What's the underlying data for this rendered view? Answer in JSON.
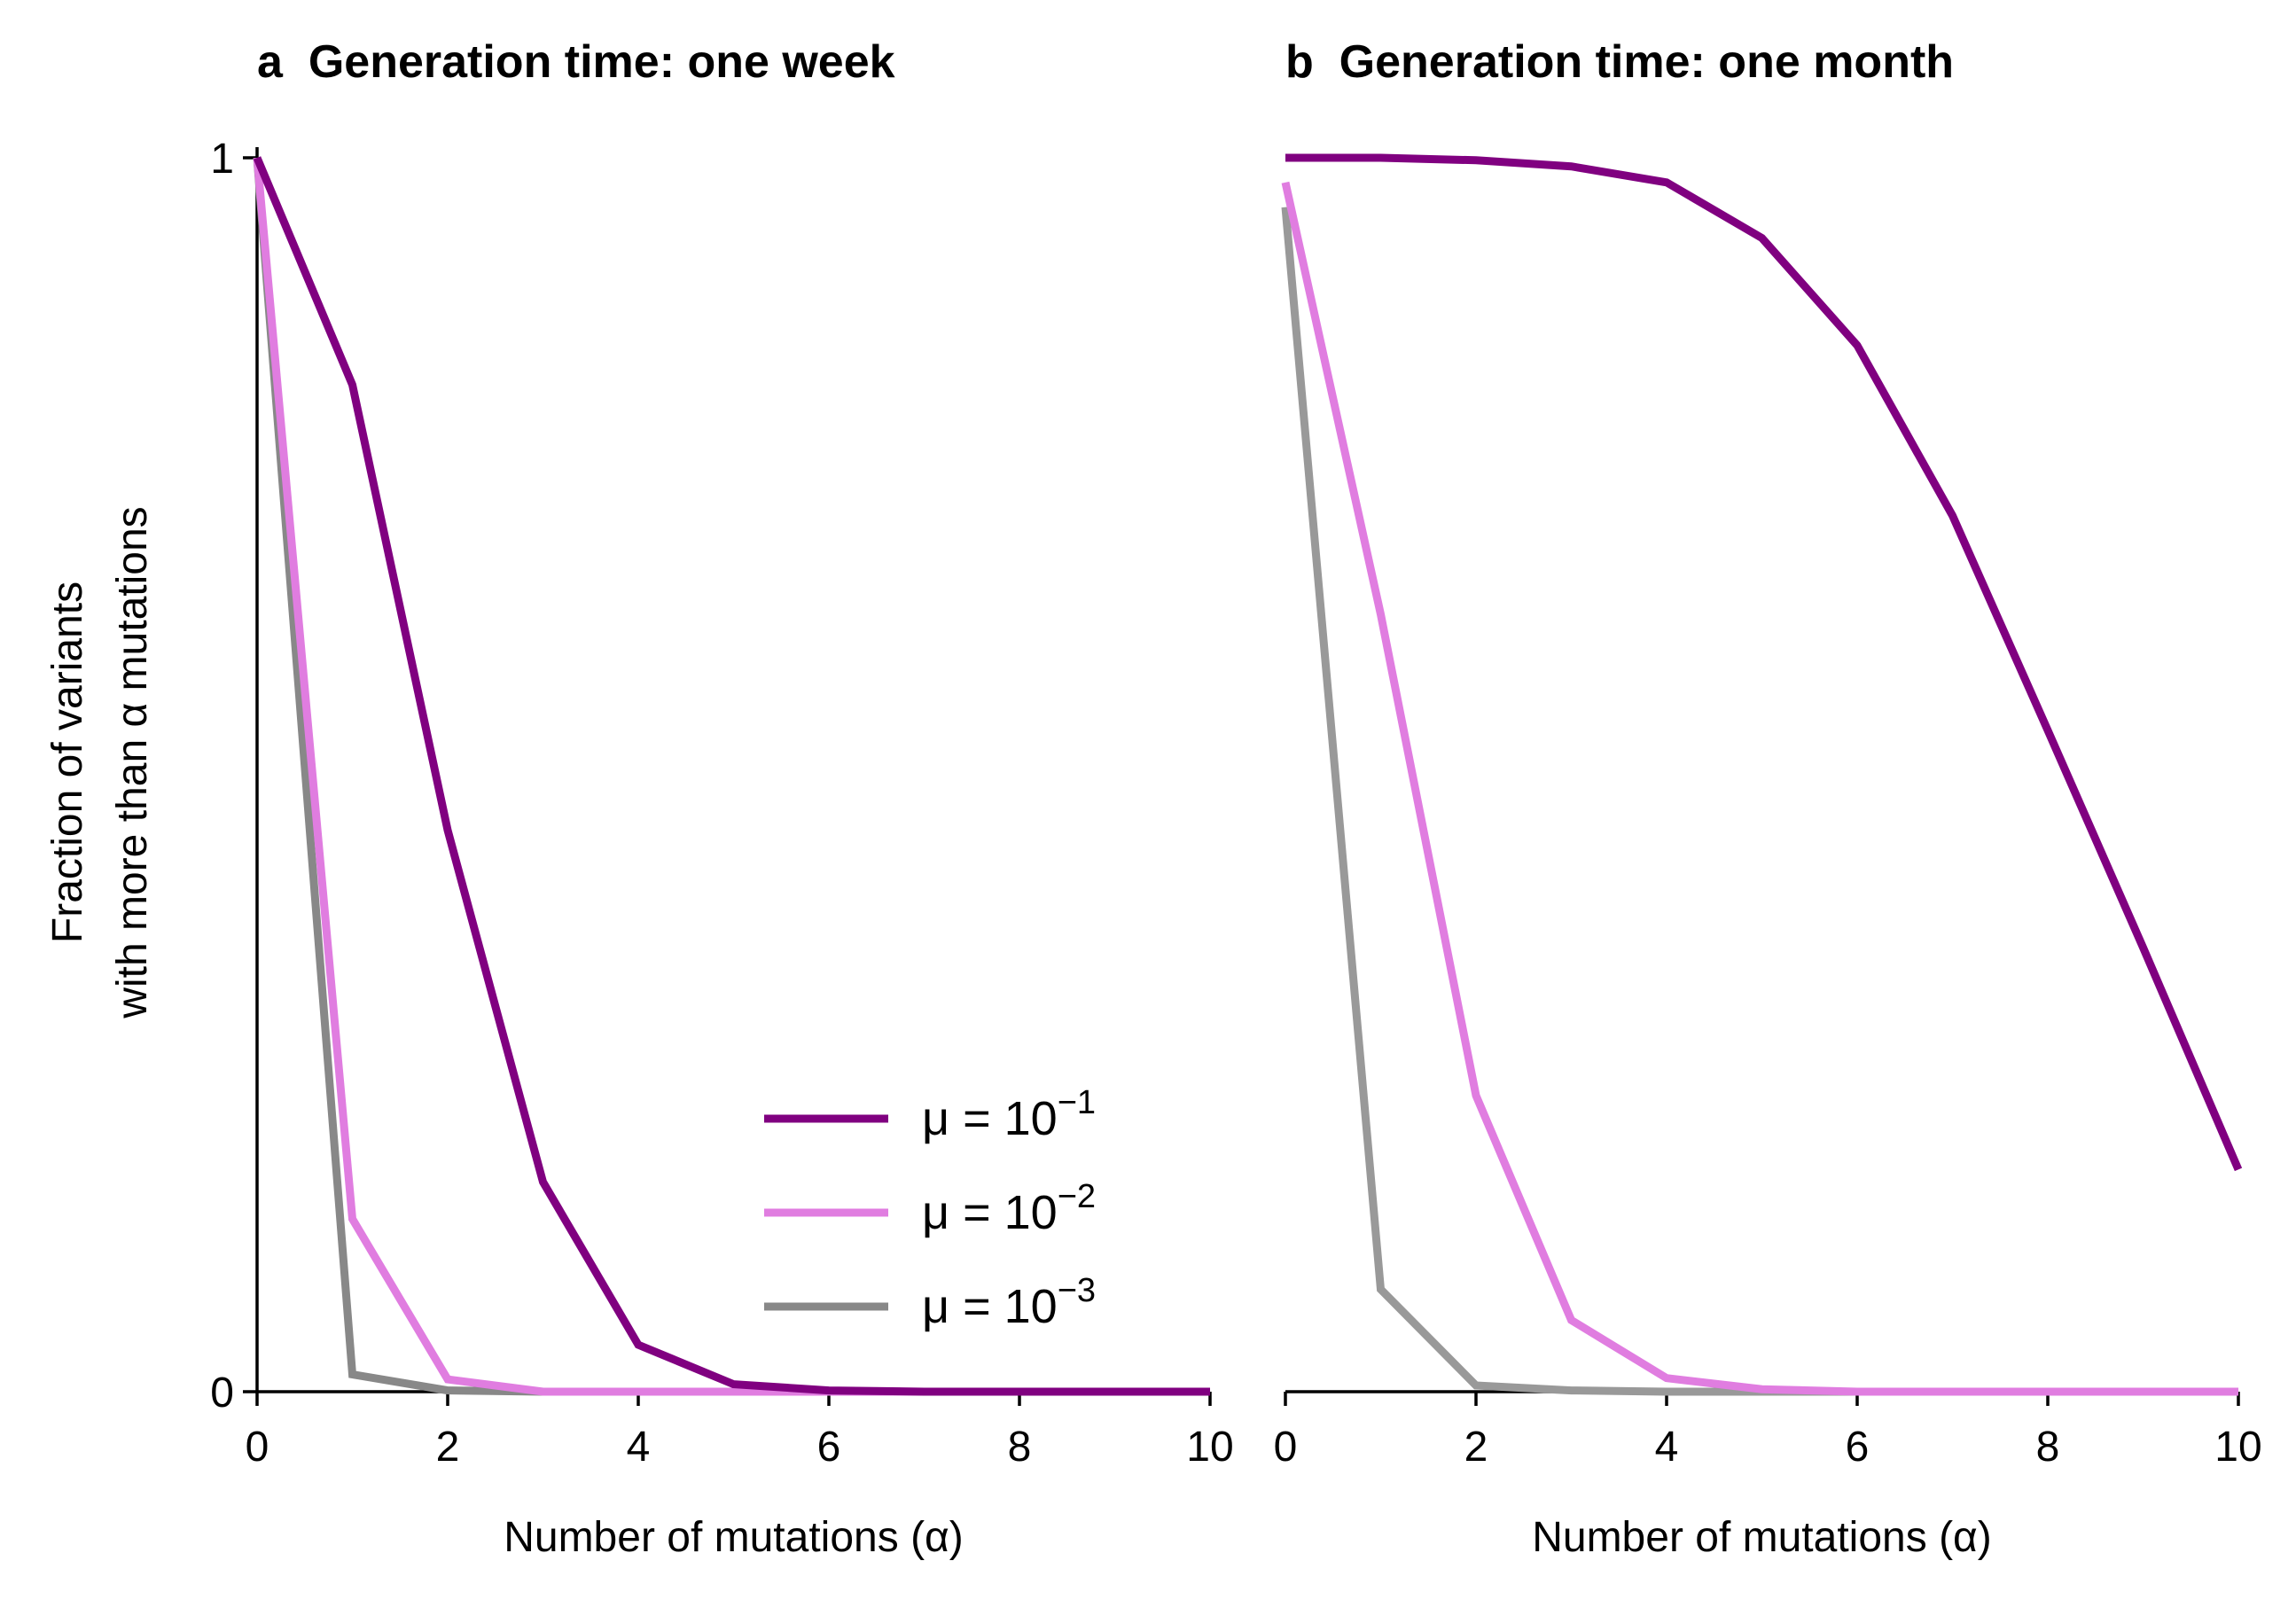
{
  "figure": {
    "ylabel_line1": "Fraction of variants",
    "ylabel_line2": "with more than α mutations",
    "legend": {
      "placement": "lower-right of panel a",
      "entries": [
        {
          "prefix": "μ = 10",
          "exp": "−1",
          "color": "#800080"
        },
        {
          "prefix": "μ = 10",
          "exp": "−2",
          "color": "#e07de0"
        },
        {
          "prefix": "μ = 10",
          "exp": "−3",
          "color": "#888888"
        }
      ]
    }
  },
  "chart_data": [
    {
      "type": "line",
      "panel_letter": "a",
      "title": "Generation time: one week",
      "xlabel": "Number of mutations (α)",
      "ylabel": "Fraction of variants with more than α mutations",
      "xlim": [
        0,
        10
      ],
      "ylim": [
        0,
        1
      ],
      "xticks": [
        0,
        2,
        4,
        6,
        8,
        10
      ],
      "yticks": [
        0,
        1
      ],
      "grid": false,
      "x": [
        0,
        1,
        2,
        3,
        4,
        5,
        6,
        7,
        8,
        9,
        10
      ],
      "series": [
        {
          "name": "μ = 10−1",
          "color": "#800080",
          "values": [
            1.0,
            0.816,
            0.455,
            0.17,
            0.038,
            0.006,
            0.001,
            0.0,
            0.0,
            0.0,
            0.0
          ]
        },
        {
          "name": "μ = 10−2",
          "color": "#e07de0",
          "values": [
            1.0,
            0.14,
            0.01,
            0.0,
            0.0,
            0.0,
            0.0,
            0.0,
            0.0,
            0.0,
            0.0
          ]
        },
        {
          "name": "μ = 10−3",
          "color": "#888888",
          "values": [
            1.0,
            0.014,
            0.001,
            0.0,
            0.0,
            0.0,
            0.0,
            0.0,
            0.0,
            0.0,
            0.0
          ]
        }
      ]
    },
    {
      "type": "line",
      "panel_letter": "b",
      "title": "Generation time: one month",
      "xlabel": "Number of mutations (α)",
      "ylabel": "Fraction of variants with more than α mutations",
      "xlim": [
        0,
        10
      ],
      "ylim": [
        0,
        1
      ],
      "xticks": [
        0,
        2,
        4,
        6,
        8,
        10
      ],
      "yticks": [
        0,
        1
      ],
      "grid": false,
      "x": [
        0,
        1,
        2,
        3,
        4,
        5,
        6,
        7,
        8,
        9,
        10
      ],
      "series": [
        {
          "name": "μ = 10−1",
          "color": "#800080",
          "values": [
            1.0,
            1.0,
            0.998,
            0.993,
            0.98,
            0.935,
            0.848,
            0.71,
            0.536,
            0.36,
            0.18
          ]
        },
        {
          "name": "μ = 10−2",
          "color": "#e07de0",
          "values": [
            0.98,
            0.63,
            0.24,
            0.058,
            0.011,
            0.002,
            0.0,
            0.0,
            0.0,
            0.0,
            0.0
          ]
        },
        {
          "name": "μ = 10−3",
          "color": "#999999",
          "values": [
            0.96,
            0.083,
            0.005,
            0.001,
            0.0,
            0.0,
            0.0,
            0.0,
            0.0,
            0.0,
            0.0
          ]
        }
      ]
    }
  ]
}
